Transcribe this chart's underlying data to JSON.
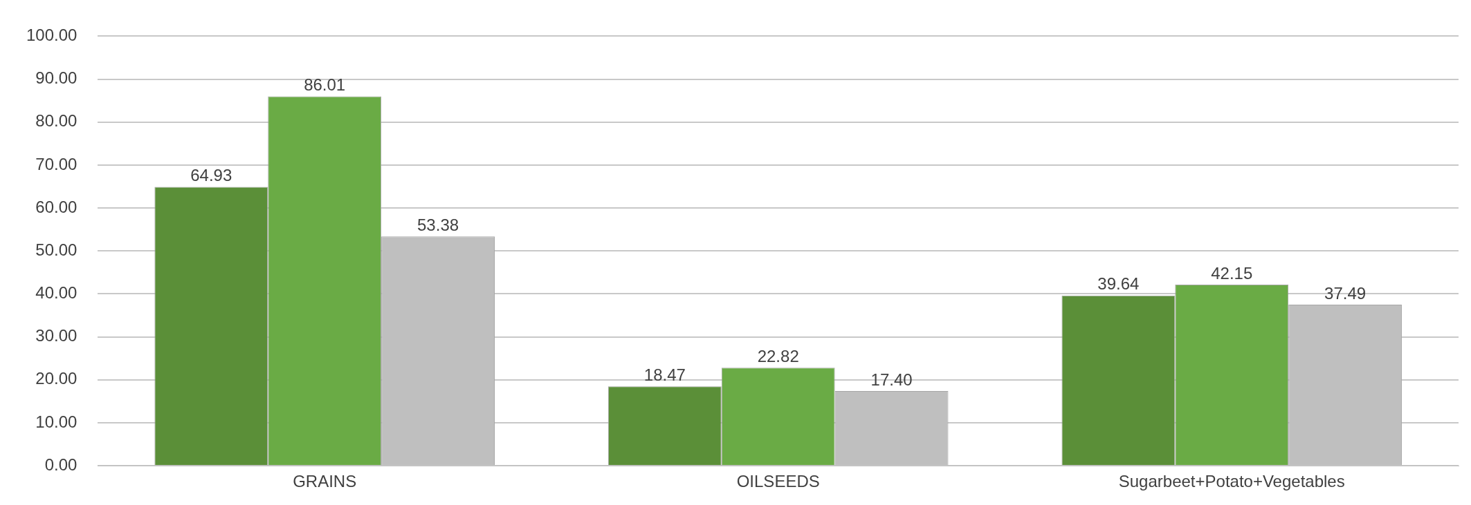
{
  "chart_data": {
    "type": "bar",
    "categories": [
      "GRAINS",
      "OILSEEDS",
      "Sugarbeet+Potato+Vegetables"
    ],
    "series": [
      {
        "color": "#5b8f38",
        "values": [
          64.93,
          18.47,
          39.64
        ],
        "value_labels": [
          "64.93",
          "18.47",
          "39.64"
        ]
      },
      {
        "color": "#6aab45",
        "values": [
          86.01,
          22.82,
          42.15
        ],
        "value_labels": [
          "86.01",
          "22.82",
          "42.15"
        ]
      },
      {
        "color": "#bfbfbf",
        "values": [
          53.38,
          17.4,
          37.49
        ],
        "value_labels": [
          "53.38",
          "17.40",
          "37.49"
        ]
      }
    ],
    "ylim": [
      0,
      100
    ],
    "yticks": [
      {
        "value": 0,
        "label": "0.00"
      },
      {
        "value": 10,
        "label": "10.00"
      },
      {
        "value": 20,
        "label": "20.00"
      },
      {
        "value": 30,
        "label": "30.00"
      },
      {
        "value": 40,
        "label": "40.00"
      },
      {
        "value": 50,
        "label": "50.00"
      },
      {
        "value": 60,
        "label": "60.00"
      },
      {
        "value": 70,
        "label": "70.00"
      },
      {
        "value": 80,
        "label": "80.00"
      },
      {
        "value": 90,
        "label": "90.00"
      },
      {
        "value": 100,
        "label": "100.00"
      }
    ],
    "grid": "y",
    "legend": false,
    "data_labels": true
  }
}
